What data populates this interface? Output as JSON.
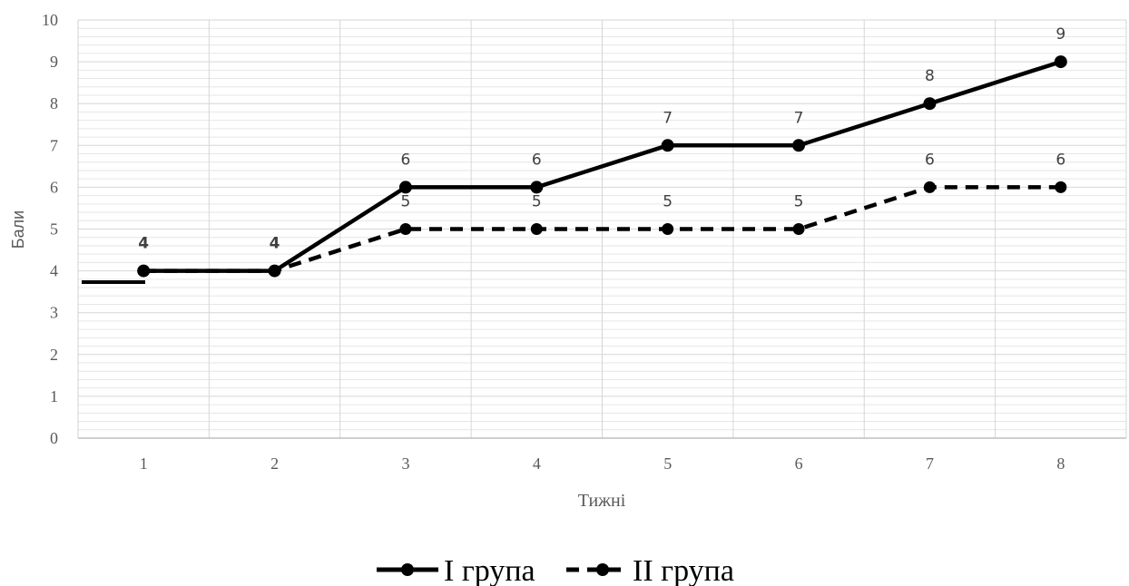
{
  "chart_data": {
    "type": "line",
    "categories": [
      "1",
      "2",
      "3",
      "4",
      "5",
      "6",
      "7",
      "8"
    ],
    "series": [
      {
        "name": "I група",
        "values": [
          4,
          4,
          6,
          6,
          7,
          7,
          8,
          9
        ],
        "style": "solid",
        "color": "#000000"
      },
      {
        "name": "II група",
        "values": [
          4,
          4,
          5,
          5,
          5,
          5,
          6,
          6
        ],
        "style": "dashed",
        "color": "#000000"
      }
    ],
    "xlabel": "Тижні",
    "ylabel": "Бали",
    "ylim": [
      0,
      10
    ],
    "yticks": [
      "0",
      "1",
      "2",
      "3",
      "4",
      "5",
      "6",
      "7",
      "8",
      "9",
      "10"
    ],
    "data_labels": {
      "series_1": [
        "4",
        "4",
        "6",
        "6",
        "7",
        "7",
        "8",
        "9"
      ],
      "series_2": [
        "",
        "",
        "5",
        "5",
        "5",
        "5",
        "6",
        "6"
      ]
    },
    "grid": true,
    "legend_position": "bottom"
  }
}
